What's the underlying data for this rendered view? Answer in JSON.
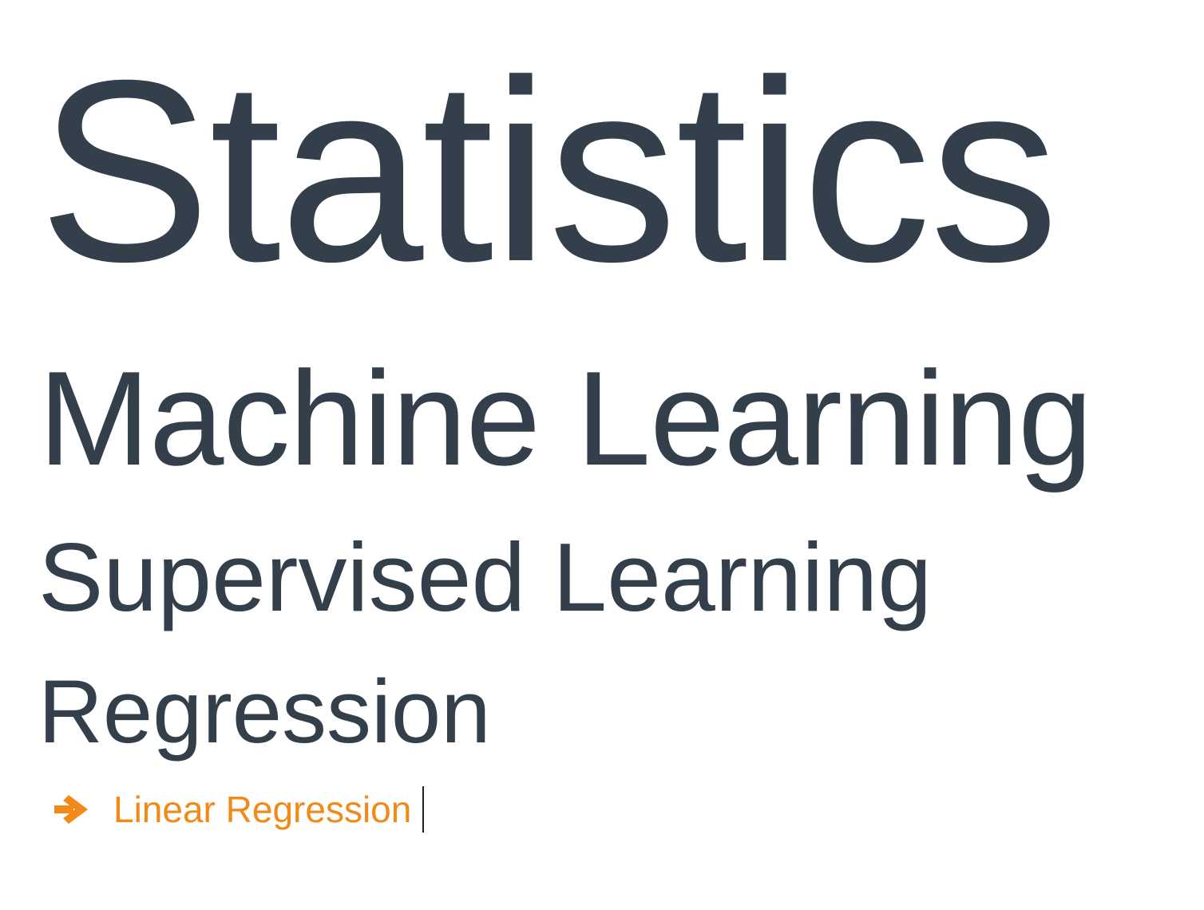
{
  "breadcrumbs": [
    {
      "label": "Statistics"
    },
    {
      "label": "Machine Learning"
    },
    {
      "label": "Supervised Learning"
    },
    {
      "label": "Regression"
    }
  ],
  "current": {
    "icon": "arrow-right-icon",
    "label": "Linear Regression"
  },
  "colors": {
    "text": "#333f4a",
    "accent": "#f28a1a",
    "background": "#ffffff"
  }
}
